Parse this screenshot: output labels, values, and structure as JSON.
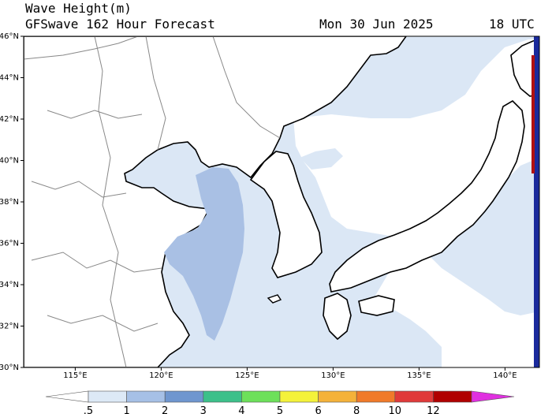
{
  "header": {
    "title": "Wave Height(m)",
    "model": "GFSwave 162 Hour Forecast",
    "date": "Mon 30 Jun 2025",
    "time": "18 UTC"
  },
  "map": {
    "lon_range": [
      112,
      142
    ],
    "lat_range": [
      30,
      46
    ],
    "lat_ticks": [
      "46°N",
      "44°N",
      "42°N",
      "40°N",
      "38°N",
      "36°N",
      "34°N",
      "32°N",
      "30°N"
    ],
    "lon_ticks": [
      "115°E",
      "120°E",
      "125°E",
      "130°E",
      "135°E",
      "140°E"
    ]
  },
  "colorbar": {
    "labels": [
      ".5",
      "1",
      "2",
      "3",
      "4",
      "5",
      "6",
      "8",
      "10",
      "12"
    ],
    "colors": [
      "#ffffff",
      "#dde9f6",
      "#a6c0e6",
      "#6f96cf",
      "#3cc08a",
      "#6de05a",
      "#f4f23a",
      "#f4b23a",
      "#f07a2a",
      "#e03a3a",
      "#b00000",
      "#e030e0"
    ]
  },
  "colors": {
    "land": "#ffffff",
    "ocean_light": "#dbe7f5",
    "ocean_mid": "#a9c0e4",
    "coast": "#000000",
    "border": "#888888",
    "edge_blue": "#1a2a9c",
    "edge_red": "#b01010"
  }
}
